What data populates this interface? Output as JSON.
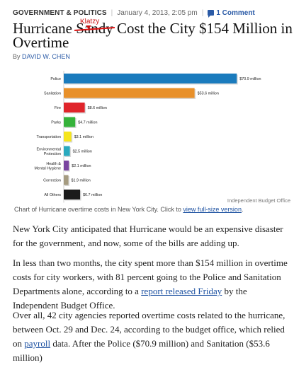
{
  "meta": {
    "category": "GOVERNMENT & POLITICS",
    "date": "January 4, 2013, 2:05 pm",
    "comments": "1 Comment"
  },
  "headline": {
    "before": "Hurricane ",
    "struck": "Sandy",
    "after": " Cost the City $154 Million in Overtime",
    "insert": "Klatzy"
  },
  "byline": {
    "prefix": "By",
    "author": "David W. Chen"
  },
  "chart_data": {
    "type": "bar",
    "orientation": "horizontal",
    "categories": [
      "Police",
      "Sanitation",
      "Fire",
      "Parks",
      "Transportation",
      "Environmental Protection",
      "Health & Mental Hygiene",
      "Correction",
      "All Others"
    ],
    "values": [
      70.9,
      53.6,
      8.6,
      4.7,
      3.1,
      2.5,
      2.1,
      1.9,
      6.7
    ],
    "labels": [
      "$70.9 million",
      "$53.6 million",
      "$8.6 million",
      "$4.7 million",
      "$3.1 million",
      "$2.5 million",
      "$2.1 million",
      "$1.9 million",
      "$6.7 million"
    ],
    "colors": [
      "#1a7bbd",
      "#e8902a",
      "#e0252b",
      "#35b23a",
      "#f5e51d",
      "#2aaabf",
      "#7a45a0",
      "#a59b80",
      "#1b1b1b"
    ],
    "source": "Independent Budget Office",
    "xlim": [
      0,
      72
    ]
  },
  "caption": {
    "text": "Chart of Hurricane overtime costs in New York City. Click to ",
    "link": "view full-size version",
    "end": "."
  },
  "paragraphs": {
    "p1": "New York City anticipated that Hurricane  would be an expensive disaster for the government, and now, some of the bills are adding up.",
    "p2_a": "In less than two months, the city spent more than $154 million in overtime costs for city workers, with 81 percent going to the Police and Sanitation Departments alone, according to a ",
    "p2_link": "report released Friday",
    "p2_b": " by the Independent Budget Office.",
    "p3_a": "Over all, 42 city agencies reported overtime costs related to the hurricane, between Oct. 29 and Dec. 24, according to the budget office, which relied on ",
    "p3_link": "payroll",
    "p3_b": " data. After the Police ($70.9 million) and Sanitation ($53.6 million)"
  }
}
